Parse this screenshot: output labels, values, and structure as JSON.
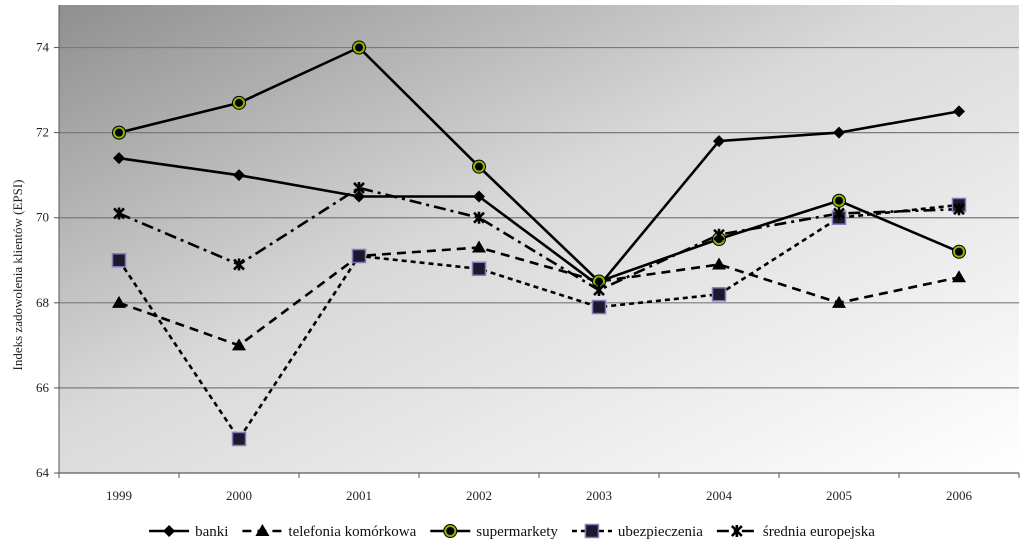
{
  "chart_data": {
    "type": "line",
    "title": "",
    "xlabel": "",
    "ylabel": "Indeks zadowolenia klientów (EPSI)",
    "categories": [
      "1999",
      "2000",
      "2001",
      "2002",
      "2003",
      "2004",
      "2005",
      "2006"
    ],
    "ylim": [
      64,
      75
    ],
    "yticks": [
      64,
      66,
      68,
      70,
      72,
      74
    ],
    "grid": true,
    "legend_position": "bottom",
    "series": [
      {
        "name": "banki",
        "values": [
          71.4,
          71.0,
          70.5,
          70.5,
          68.4,
          71.8,
          72.0,
          72.5
        ],
        "marker": "diamond",
        "dash": "solid",
        "color": "#000000"
      },
      {
        "name": "telefonia komórkowa",
        "values": [
          68.0,
          67.0,
          69.1,
          69.3,
          68.5,
          68.9,
          68.0,
          68.6
        ],
        "marker": "triangle",
        "dash": "dash",
        "color": "#000000"
      },
      {
        "name": "supermarkety",
        "values": [
          72.0,
          72.7,
          74.0,
          71.2,
          68.5,
          69.5,
          70.4,
          69.2
        ],
        "marker": "circle",
        "dash": "solid",
        "color": "#000000",
        "marker_fill": "#8db400"
      },
      {
        "name": "ubezpieczenia",
        "values": [
          69.0,
          64.8,
          69.1,
          68.8,
          67.9,
          68.2,
          70.0,
          70.3
        ],
        "marker": "square",
        "dash": "shortdash",
        "color": "#000000",
        "marker_fill": "#1a1a2e",
        "marker_stroke": "#8a7ab8"
      },
      {
        "name": "średnia europejska",
        "values": [
          70.1,
          68.9,
          70.7,
          70.0,
          68.3,
          69.6,
          70.1,
          70.2
        ],
        "marker": "star",
        "dash": "dashdot",
        "color": "#000000"
      }
    ]
  }
}
